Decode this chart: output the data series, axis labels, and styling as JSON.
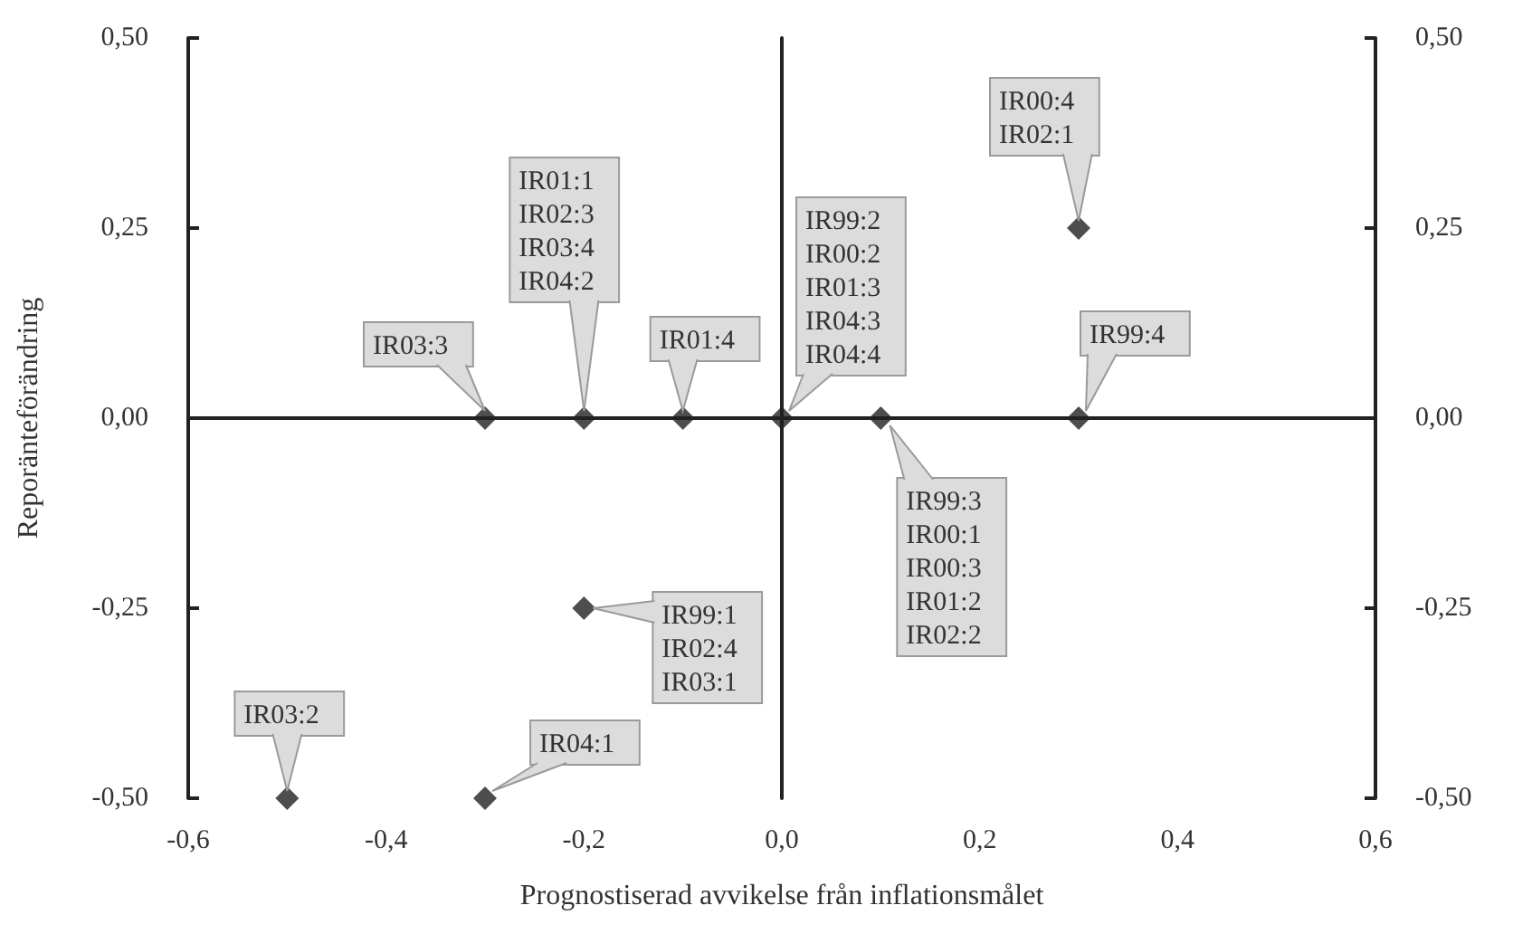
{
  "chart_data": {
    "type": "scatter",
    "xlabel": "Prognostiserad avvikelse från inflationsmålet",
    "ylabel": "Reporänteförändring",
    "x": [
      -0.3,
      -0.2,
      -0.1,
      0.0,
      0.3,
      0.3,
      0.1,
      -0.2,
      -0.5,
      -0.3
    ],
    "values": [
      0,
      0,
      0,
      0,
      0.25,
      0,
      0,
      -0.25,
      -0.5,
      -0.5
    ],
    "color": "#222222",
    "marker": "diamond",
    "xlim": [
      -0.6,
      0.6
    ],
    "xticks": [
      {
        "value": -0.6,
        "label": "-0,6"
      },
      {
        "value": -0.4,
        "label": "-0,4"
      },
      {
        "value": -0.2,
        "label": "-0,2"
      },
      {
        "value": 0,
        "label": "0,0"
      },
      {
        "value": 0.2,
        "label": "0,2"
      },
      {
        "value": 0.4,
        "label": "0,4"
      },
      {
        "value": 0.6,
        "label": "0,6"
      }
    ],
    "ylim": [
      -0.5,
      0.5
    ],
    "yticks": [
      {
        "value": -0.5,
        "label": "-0,50"
      },
      {
        "value": -0.25,
        "label": "-0,25"
      },
      {
        "value": 0,
        "label": "0,00"
      },
      {
        "value": 0.25,
        "label": "0,25"
      },
      {
        "value": 0.5,
        "label": "0,50"
      }
    ],
    "y2lim": [
      -0.5,
      0.5
    ],
    "y2ticks": [
      {
        "value": -0.5,
        "label": "-0,50"
      },
      {
        "value": -0.25,
        "label": "-0,25"
      },
      {
        "value": 0,
        "label": "0,00"
      },
      {
        "value": 0.25,
        "label": "0,25"
      },
      {
        "value": 0.5,
        "label": "0,50"
      }
    ],
    "annotations": [
      {
        "text": "IR03:3",
        "x": -0.3,
        "y": 0
      },
      {
        "text": "IR01:1\nIR02:3\nIR03:4\nIR04:2",
        "x": -0.2,
        "y": 0
      },
      {
        "text": "IR01:4",
        "x": -0.1,
        "y": 0
      },
      {
        "text": "IR99:2\nIR00:2\nIR01:3\nIR04:3\nIR04:4",
        "x": 0.0,
        "y": 0
      },
      {
        "text": "IR00:4\nIR02:1",
        "x": 0.3,
        "y": 0.25
      },
      {
        "text": "IR99:4",
        "x": 0.3,
        "y": 0
      },
      {
        "text": "IR99:3\nIR00:1\nIR00:3\nIR01:2\nIR02:2",
        "x": 0.1,
        "y": 0
      },
      {
        "text": "IR99:1\nIR02:4\nIR03:1",
        "x": -0.2,
        "y": -0.25
      },
      {
        "text": "IR03:2",
        "x": -0.5,
        "y": -0.5
      },
      {
        "text": "IR04:1",
        "x": -0.3,
        "y": -0.5
      }
    ]
  }
}
